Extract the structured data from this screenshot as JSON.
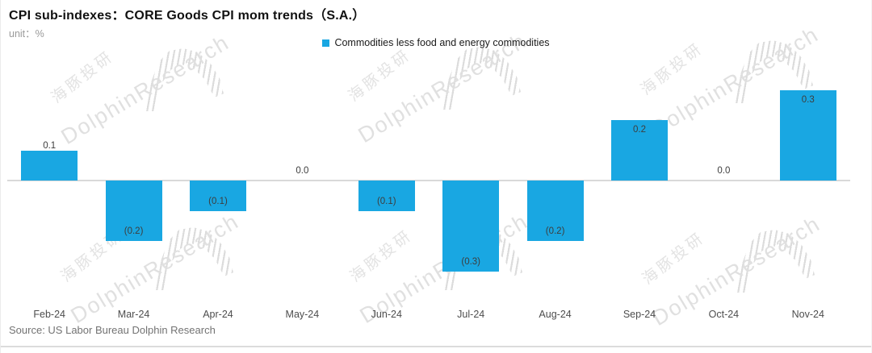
{
  "header": {
    "title": "CPI sub-indexes：CORE Goods CPI mom trends（S.A.）",
    "unit_label": "unit：%"
  },
  "legend": {
    "label": "Commodities less food and energy commodities"
  },
  "source": "Source: US Labor Bureau Dolphin Research",
  "watermark": {
    "cn": "海豚投研",
    "en": "DolphinResearch"
  },
  "colors": {
    "bar": "#19A7E2",
    "axis_line": "#d9d9d9",
    "value_label": "#3d3d3d",
    "month_label": "#4d4d4d",
    "watermark": "#e0e0e0"
  },
  "chart_data": {
    "type": "bar",
    "title": "CPI sub-indexes：CORE Goods CPI mom trends（S.A.）",
    "unit": "%",
    "series_name": "Commodities less food and energy commodities",
    "categories": [
      "Feb-24",
      "Mar-24",
      "Apr-24",
      "May-24",
      "Jun-24",
      "Jul-24",
      "Aug-24",
      "Sep-24",
      "Oct-24",
      "Nov-24"
    ],
    "values": [
      0.1,
      -0.2,
      -0.1,
      0.0,
      -0.1,
      -0.3,
      -0.2,
      0.2,
      0.0,
      0.3
    ],
    "value_labels": [
      "0.1",
      "(0.2)",
      "(0.1)",
      "0.0",
      "(0.1)",
      "(0.3)",
      "(0.2)",
      "0.2",
      "0.0",
      "0.3"
    ],
    "label_placement": [
      "outside",
      "inside",
      "inside",
      "axis",
      "inside",
      "inside",
      "inside",
      "inside",
      "axis",
      "inside"
    ],
    "negative_format": "parentheses",
    "xlabel": "",
    "ylabel": "%",
    "ylim": [
      -0.35,
      0.35
    ],
    "grid": false,
    "legend_position": "top-center"
  }
}
